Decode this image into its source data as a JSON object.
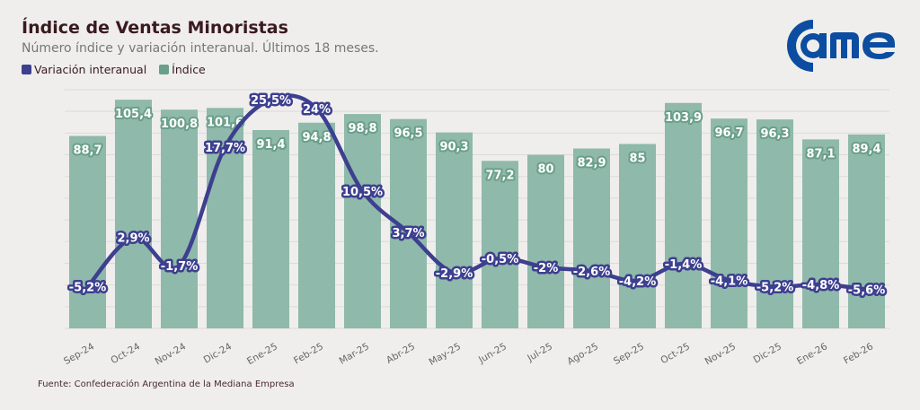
{
  "header": {
    "title": "Índice de Ventas Minoristas",
    "subtitle": "Número índice y variación interanual. Últimos 18 meses.",
    "logo_text": "came"
  },
  "footer": {
    "source": "Fuente: Confederación Argentina de la Mediana Empresa"
  },
  "chart_data": {
    "type": "bar+line",
    "categories": [
      "Sep-24",
      "Oct-24",
      "Nov-24",
      "Dic-24",
      "Ene-25",
      "Feb-25",
      "Mar-25",
      "Abr-25",
      "May-25",
      "Jun-25",
      "Jul-25",
      "Ago-25",
      "Sep-25",
      "Oct-25",
      "Nov-25",
      "Dic-25",
      "Ene-26",
      "Feb-26"
    ],
    "series": [
      {
        "name": "Índice",
        "type": "bar",
        "color": "#8fb9aa",
        "label_color": "#6a9f8a",
        "values": [
          88.7,
          105.4,
          100.8,
          101.6,
          91.4,
          94.8,
          98.8,
          96.5,
          90.3,
          77.2,
          80,
          82.9,
          85,
          103.9,
          96.7,
          96.3,
          87.1,
          89.4
        ],
        "labels": [
          "88,7",
          "105,4",
          "100,8",
          "101,6",
          "91,4",
          "94,8",
          "98,8",
          "96,5",
          "90,3",
          "77,2",
          "80",
          "82,9",
          "85",
          "103,9",
          "96,7",
          "96,3",
          "87,1",
          "89,4"
        ]
      },
      {
        "name": "Variación interanual",
        "type": "line",
        "color": "#3d3f8f",
        "values": [
          -5.2,
          2.9,
          -1.7,
          17.7,
          25.5,
          24,
          10.5,
          3.7,
          -2.9,
          -0.5,
          -2,
          -2.6,
          -4.2,
          -1.4,
          -4.1,
          -5.2,
          -4.8,
          -5.6
        ],
        "labels": [
          "-5,2%",
          "2,9%",
          "-1,7%",
          "17,7%",
          "25,5%",
          "24%",
          "10,5%",
          "3,7%",
          "-2,9%",
          "-0,5%",
          "-2%",
          "-2,6%",
          "-4,2%",
          "-1,4%",
          "-4,1%",
          "-5,2%",
          "-4,8%",
          "-5,6%"
        ]
      }
    ],
    "ylim": [
      0,
      110
    ],
    "y2lim": [
      -12,
      27.1
    ],
    "grid": true,
    "legend": "top-left"
  }
}
